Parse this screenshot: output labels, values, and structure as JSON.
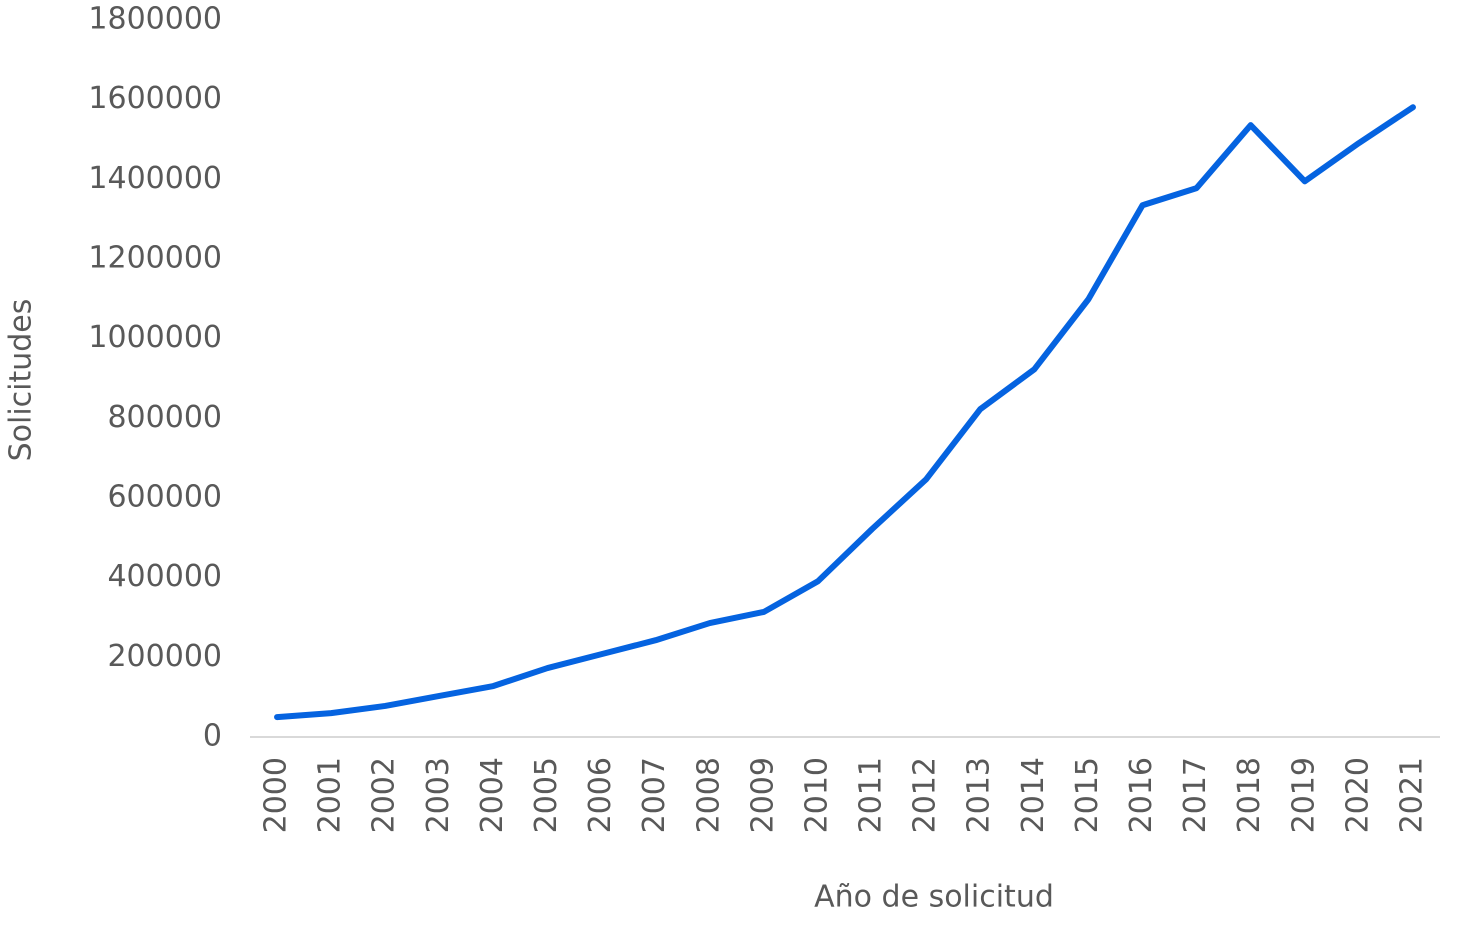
{
  "chart_data": {
    "type": "line",
    "y_label": "Solicitudes",
    "x_label": "Año de solicitud",
    "categories": [
      "2000",
      "2001",
      "2002",
      "2003",
      "2004",
      "2005",
      "2006",
      "2007",
      "2008",
      "2009",
      "2010",
      "2011",
      "2012",
      "2013",
      "2014",
      "2015",
      "2016",
      "2017",
      "2018",
      "2019",
      "2020",
      "2021"
    ],
    "values": [
      50000,
      60000,
      78000,
      103000,
      128000,
      173000,
      208000,
      243000,
      286000,
      314000,
      391000,
      522000,
      647000,
      823000,
      923000,
      1099000,
      1335000,
      1378000,
      1536000,
      1395000,
      1491000,
      1581000
    ],
    "color": "#0563e0",
    "ylim": [
      0,
      1800000
    ],
    "yticks": [
      0,
      200000,
      400000,
      600000,
      800000,
      1000000,
      1200000,
      1400000,
      1600000,
      1800000
    ],
    "grid": false
  }
}
